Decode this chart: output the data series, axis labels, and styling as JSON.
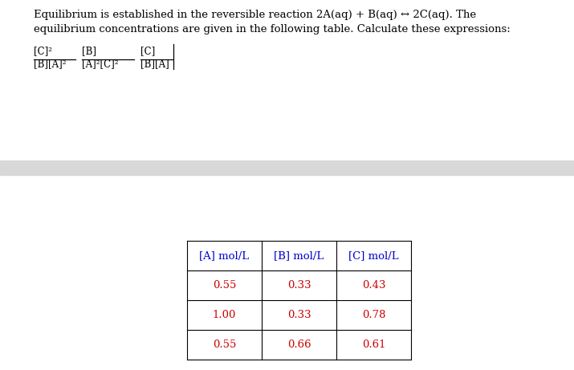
{
  "background_color": "#ffffff",
  "gray_bar_color": "#d8d8d8",
  "text_color": "#000000",
  "blue_color": "#0000cc",
  "red_color": "#cc0000",
  "paragraph_text_line1": "Equilibrium is established in the reversible reaction 2A(aq) + B(aq) ↔ 2C(aq). The",
  "paragraph_text_line2": "equilibrium concentrations are given in the following table. Calculate these expressions:",
  "expr_frac1_num": "[C]²",
  "expr_frac1_den": "[B][A]²",
  "expr_frac2_num": "[B]",
  "expr_frac2_den": "[A]²[C]²",
  "expr_frac3_num": "[C]",
  "expr_frac3_den": "[B][A]",
  "table_headers": [
    "[A] mol/L",
    "[B] mol/L",
    "[C] mol/L"
  ],
  "table_data": [
    [
      "0.55",
      "0.33",
      "0.43"
    ],
    [
      "1.00",
      "0.33",
      "0.78"
    ],
    [
      "0.55",
      "0.66",
      "0.61"
    ]
  ],
  "font_size_body": 9.5,
  "font_size_table": 9.5,
  "font_size_expr": 8.5
}
